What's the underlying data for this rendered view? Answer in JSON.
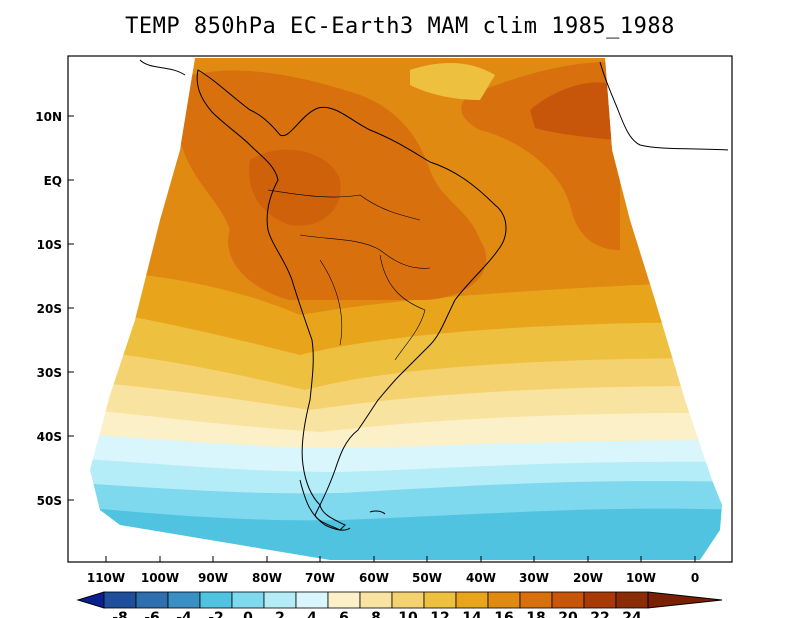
{
  "title": "TEMP 850hPa EC-Earth3 MAM clim 1985_1988",
  "lat_labels": [
    "10N",
    "EQ",
    "10S",
    "20S",
    "30S",
    "40S",
    "50S"
  ],
  "lon_labels": [
    "110W",
    "100W",
    "90W",
    "80W",
    "70W",
    "60W",
    "50W",
    "40W",
    "30W",
    "20W",
    "10W",
    "0"
  ],
  "colorbar": {
    "labels": [
      "-8",
      "-6",
      "-4",
      "-2",
      "0",
      "2",
      "4",
      "6",
      "8",
      "10",
      "12",
      "14",
      "16",
      "18",
      "20",
      "22",
      "24"
    ],
    "colors": [
      "#0a1f8f",
      "#1f4e9c",
      "#2e6fb0",
      "#3a8fc4",
      "#4fc3e0",
      "#7ed8ee",
      "#b4ecf8",
      "#d8f6fb",
      "#fbf0c8",
      "#f8e3a0",
      "#f5d270",
      "#eec040",
      "#e8a51c",
      "#e08a12",
      "#d8700e",
      "#c8560a",
      "#a83a08",
      "#7a2004"
    ]
  }
}
